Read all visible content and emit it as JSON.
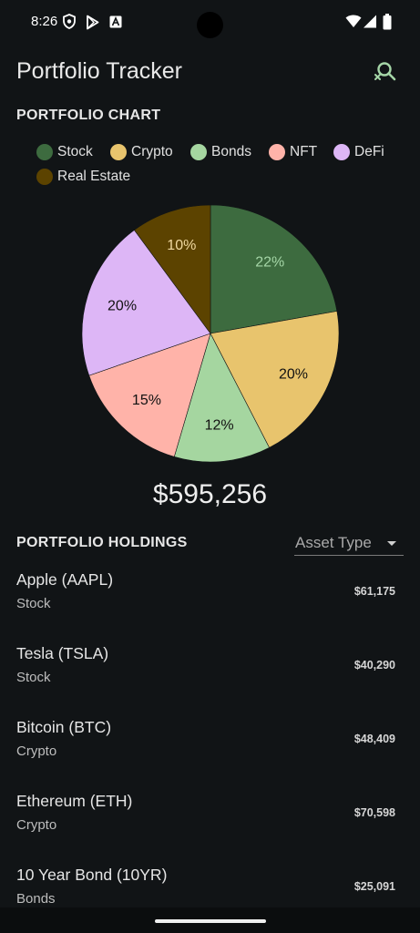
{
  "status_bar": {
    "time": "8:26",
    "icons": [
      "shield-icon",
      "play-store-icon",
      "text-a-icon",
      "wifi-icon",
      "signal-icon",
      "battery-icon"
    ]
  },
  "app_bar": {
    "title": "Portfolio Tracker",
    "action_icon": "search-close-icon",
    "accent_color": "#a5d6a7"
  },
  "chart_section": {
    "title": "PORTFOLIO CHART"
  },
  "chart_data": {
    "type": "pie",
    "categories": [
      "Stock",
      "Crypto",
      "Bonds",
      "NFT",
      "DeFi",
      "Real Estate"
    ],
    "values": [
      22,
      20,
      12,
      15,
      20,
      10
    ],
    "labels": [
      "22%",
      "20%",
      "12%",
      "15%",
      "20%",
      "10%"
    ],
    "colors": [
      "#3d6b3f",
      "#e8c46d",
      "#a5d6a0",
      "#ffb3a9",
      "#ddb6f6",
      "#5c4300"
    ],
    "label_colors": [
      "#a5d6a7",
      "#111111",
      "#111111",
      "#111111",
      "#111111",
      "#f0d9a0"
    ],
    "legend_placement": "top"
  },
  "total": {
    "value": "$595,256"
  },
  "holdings_section": {
    "title": "PORTFOLIO HOLDINGS",
    "filter_label": "Asset Type"
  },
  "holdings": [
    {
      "name": "Apple (AAPL)",
      "type": "Stock",
      "value": "$61,175"
    },
    {
      "name": "Tesla (TSLA)",
      "type": "Stock",
      "value": "$40,290"
    },
    {
      "name": "Bitcoin (BTC)",
      "type": "Crypto",
      "value": "$48,409"
    },
    {
      "name": "Ethereum (ETH)",
      "type": "Crypto",
      "value": "$70,598"
    },
    {
      "name": "10 Year Bond (10YR)",
      "type": "Bonds",
      "value": "$25,091"
    }
  ]
}
